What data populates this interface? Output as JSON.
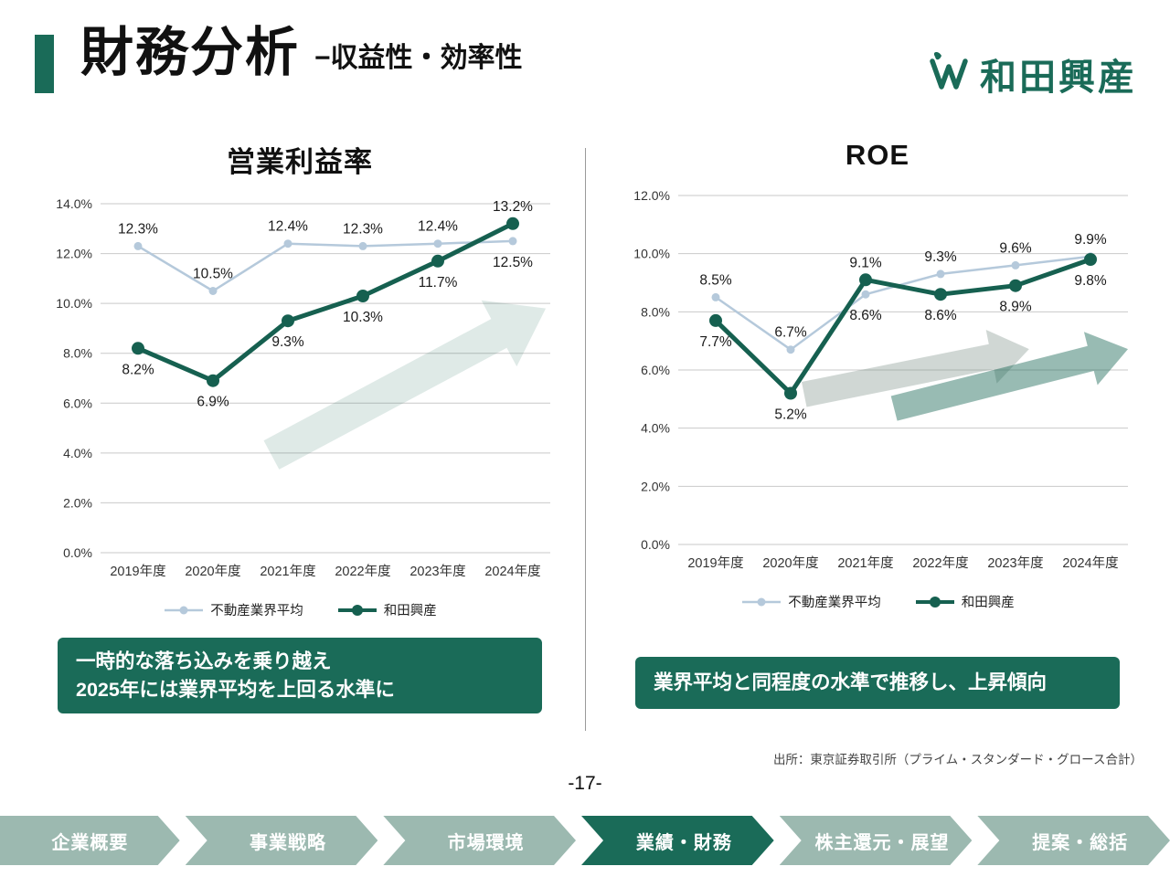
{
  "header": {
    "title": "財務分析",
    "subtitle": "−収益性・効率性"
  },
  "logo": {
    "text": "和田興産"
  },
  "colors": {
    "brand_green": "#1a6b58",
    "dark_line": "#166050",
    "light_line": "#b5c9db",
    "nav_inactive": "#9cb9b0"
  },
  "chart_data": [
    {
      "type": "line",
      "title": "営業利益率",
      "categories": [
        "2019年度",
        "2020年度",
        "2021年度",
        "2022年度",
        "2023年度",
        "2024年度"
      ],
      "series": [
        {
          "name": "不動産業界平均",
          "color": "#b5c9db",
          "width": 2.5,
          "marker": 4.5,
          "values": [
            12.3,
            10.5,
            12.4,
            12.3,
            12.4,
            12.5
          ]
        },
        {
          "name": "和田興産",
          "color": "#166050",
          "width": 5,
          "marker": 7,
          "values": [
            8.2,
            6.9,
            9.3,
            10.3,
            11.7,
            13.2
          ]
        }
      ],
      "ylim": [
        0,
        14
      ],
      "ytick_step": 2,
      "grid": true,
      "legend_position": "bottom",
      "arrows": [
        {
          "x1": 0.38,
          "y1": 0.72,
          "x2": 0.99,
          "y2": 0.3,
          "t": 36,
          "head": 58,
          "hw": 82,
          "color": "rgba(27,104,86,0.14)"
        }
      ],
      "callout": [
        "一時的な落ち込みを乗り越え",
        "2025年には業界平均を上回る水準に"
      ]
    },
    {
      "type": "line",
      "title": "ROE",
      "categories": [
        "2019年度",
        "2020年度",
        "2021年度",
        "2022年度",
        "2023年度",
        "2024年度"
      ],
      "series": [
        {
          "name": "不動産業界平均",
          "color": "#b5c9db",
          "width": 2.5,
          "marker": 4.5,
          "values": [
            8.5,
            6.7,
            8.6,
            9.3,
            9.6,
            9.9
          ]
        },
        {
          "name": "和田興産",
          "color": "#166050",
          "width": 5,
          "marker": 7,
          "values": [
            7.7,
            5.2,
            9.1,
            8.6,
            8.9,
            9.8
          ]
        }
      ],
      "ylim": [
        0,
        12
      ],
      "ytick_step": 2,
      "grid": true,
      "legend_position": "bottom",
      "arrows": [
        {
          "x1": 0.28,
          "y1": 0.57,
          "x2": 0.78,
          "y2": 0.44,
          "t": 28,
          "head": 42,
          "hw": 60,
          "color": "rgba(120,140,133,0.35)"
        },
        {
          "x1": 0.48,
          "y1": 0.61,
          "x2": 1.0,
          "y2": 0.44,
          "t": 28,
          "head": 42,
          "hw": 60,
          "color": "rgba(27,104,86,0.45)"
        }
      ],
      "callout": [
        "業界平均と同程度の水準で推移し、上昇傾向"
      ]
    }
  ],
  "footer": {
    "source": "出所：東京証券取引所（プライム・スタンダード・グロース合計）",
    "page": "-17-"
  },
  "nav": {
    "active_label": "業績・財務",
    "items": [
      {
        "label": "企業概要"
      },
      {
        "label": "事業戦略"
      },
      {
        "label": "市場環境"
      },
      {
        "label": "業績・財務"
      },
      {
        "label": "株主還元・展望"
      },
      {
        "label": "提案・総括"
      }
    ]
  }
}
